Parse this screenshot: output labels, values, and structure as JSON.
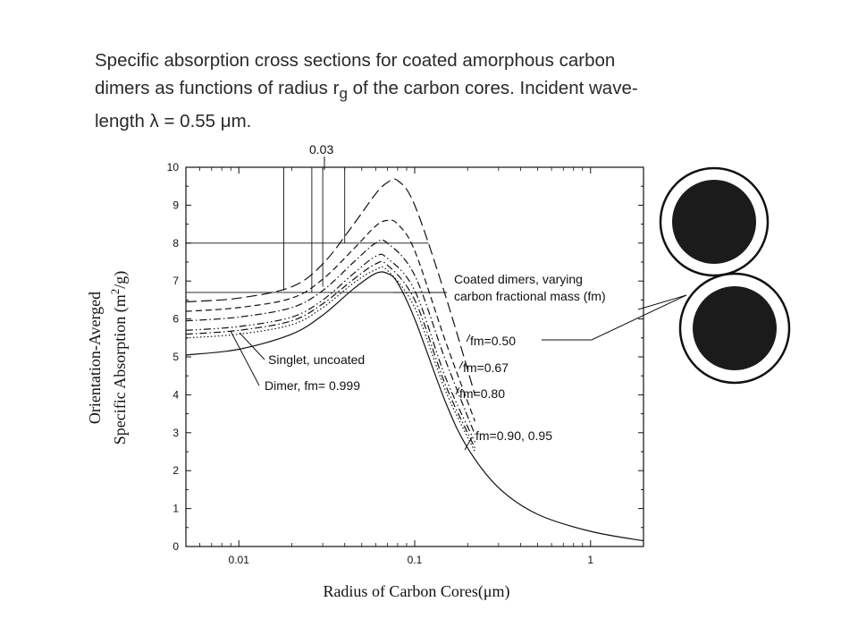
{
  "title_lines": [
    "Specific absorption cross sections for coated amorphous carbon",
    "dimers as functions of radius r",
    "g",
    " of the carbon cores. Incident wave-",
    "length λ = 0.55 μm."
  ],
  "chart_data": {
    "type": "line",
    "xlabel": "Radius of Carbon Cores(μm)",
    "ylabel_line1": "Orientation-Averged",
    "ylabel_line2": "Specific Absorption (m",
    "ylabel_sup": "2",
    "ylabel_end": "/g)",
    "x_scale": "log",
    "xlim": [
      0.005,
      2
    ],
    "ylim": [
      0,
      10
    ],
    "x_ticks": [
      {
        "value": 0.01,
        "label": "0.01"
      },
      {
        "value": 0.1,
        "label": "0.1"
      },
      {
        "value": 1,
        "label": "1"
      }
    ],
    "y_ticks": [
      {
        "value": 0,
        "label": "0"
      },
      {
        "value": 1,
        "label": "1"
      },
      {
        "value": 2,
        "label": "2"
      },
      {
        "value": 3,
        "label": "3"
      },
      {
        "value": 4,
        "label": "4"
      },
      {
        "value": 5,
        "label": "5"
      },
      {
        "value": 6,
        "label": "6"
      },
      {
        "value": 7,
        "label": "7"
      },
      {
        "value": 8,
        "label": "8"
      },
      {
        "value": 9,
        "label": "9"
      },
      {
        "value": 10,
        "label": "10"
      }
    ],
    "series": [
      {
        "id": "singlet",
        "style": "solid",
        "x": [
          0.005,
          0.01,
          0.02,
          0.03,
          0.045,
          0.06,
          0.07,
          0.08,
          0.1,
          0.15,
          0.2,
          0.3,
          0.5,
          1,
          2
        ],
        "y": [
          5.05,
          5.2,
          5.6,
          6.1,
          6.8,
          7.2,
          7.2,
          6.95,
          6.0,
          3.8,
          2.6,
          1.55,
          0.85,
          0.4,
          0.15
        ]
      },
      {
        "id": "dimer_0.999",
        "style": "dotted",
        "x": [
          0.005,
          0.01,
          0.02,
          0.03,
          0.045,
          0.06,
          0.07,
          0.1,
          0.15,
          0.22
        ],
        "y": [
          5.5,
          5.6,
          5.85,
          6.3,
          6.95,
          7.3,
          7.28,
          6.3,
          4.1,
          2.5
        ]
      },
      {
        "id": "fm_0.95",
        "style": "dashdot",
        "x": [
          0.005,
          0.01,
          0.02,
          0.03,
          0.045,
          0.06,
          0.07,
          0.1,
          0.15,
          0.22
        ],
        "y": [
          5.6,
          5.7,
          5.95,
          6.4,
          7.05,
          7.45,
          7.42,
          6.5,
          4.25,
          2.6
        ]
      },
      {
        "id": "fm_0.90",
        "style": "dashdotdot",
        "x": [
          0.005,
          0.01,
          0.02,
          0.03,
          0.045,
          0.06,
          0.07,
          0.1,
          0.15,
          0.22
        ],
        "y": [
          5.7,
          5.8,
          6.05,
          6.5,
          7.2,
          7.65,
          7.6,
          6.75,
          4.45,
          2.75
        ]
      },
      {
        "id": "fm_0.80",
        "style": "dashdot",
        "x": [
          0.005,
          0.01,
          0.02,
          0.03,
          0.045,
          0.06,
          0.07,
          0.1,
          0.15,
          0.22
        ],
        "y": [
          5.95,
          6.05,
          6.3,
          6.75,
          7.5,
          8.0,
          8.0,
          7.15,
          4.9,
          2.95
        ]
      },
      {
        "id": "fm_0.67",
        "style": "dashed",
        "x": [
          0.005,
          0.01,
          0.02,
          0.03,
          0.045,
          0.06,
          0.07,
          0.08,
          0.1,
          0.15,
          0.22
        ],
        "y": [
          6.2,
          6.3,
          6.55,
          7.05,
          7.85,
          8.45,
          8.6,
          8.5,
          7.8,
          5.4,
          3.3
        ]
      },
      {
        "id": "fm_0.50",
        "style": "longdash",
        "x": [
          0.005,
          0.01,
          0.02,
          0.03,
          0.045,
          0.06,
          0.07,
          0.08,
          0.1,
          0.15,
          0.22
        ],
        "y": [
          6.45,
          6.55,
          6.85,
          7.45,
          8.5,
          9.3,
          9.6,
          9.65,
          9.0,
          6.6,
          4.0
        ]
      }
    ],
    "annotations": {
      "top_value": "0.03",
      "coated_dimers_line1": "Coated dimers, varying",
      "coated_dimers_line2": "carbon fractional mass (fm)",
      "fm050": "fm=0.50",
      "fm067": "fm=0.67",
      "fm080": "fm=0.80",
      "fm09095": "fm=0.90, 0.95",
      "singlet": "Singlet, uncoated",
      "dimer": "Dimer, fm= 0.999"
    },
    "reference_lines": {
      "horizontal_y": [
        8.0,
        6.7
      ],
      "vertical_x": [
        0.018,
        0.026,
        0.03,
        0.04
      ]
    }
  },
  "colors": {
    "ink": "#111111",
    "title": "#2a2a2a",
    "core": "#1b1b1b"
  }
}
